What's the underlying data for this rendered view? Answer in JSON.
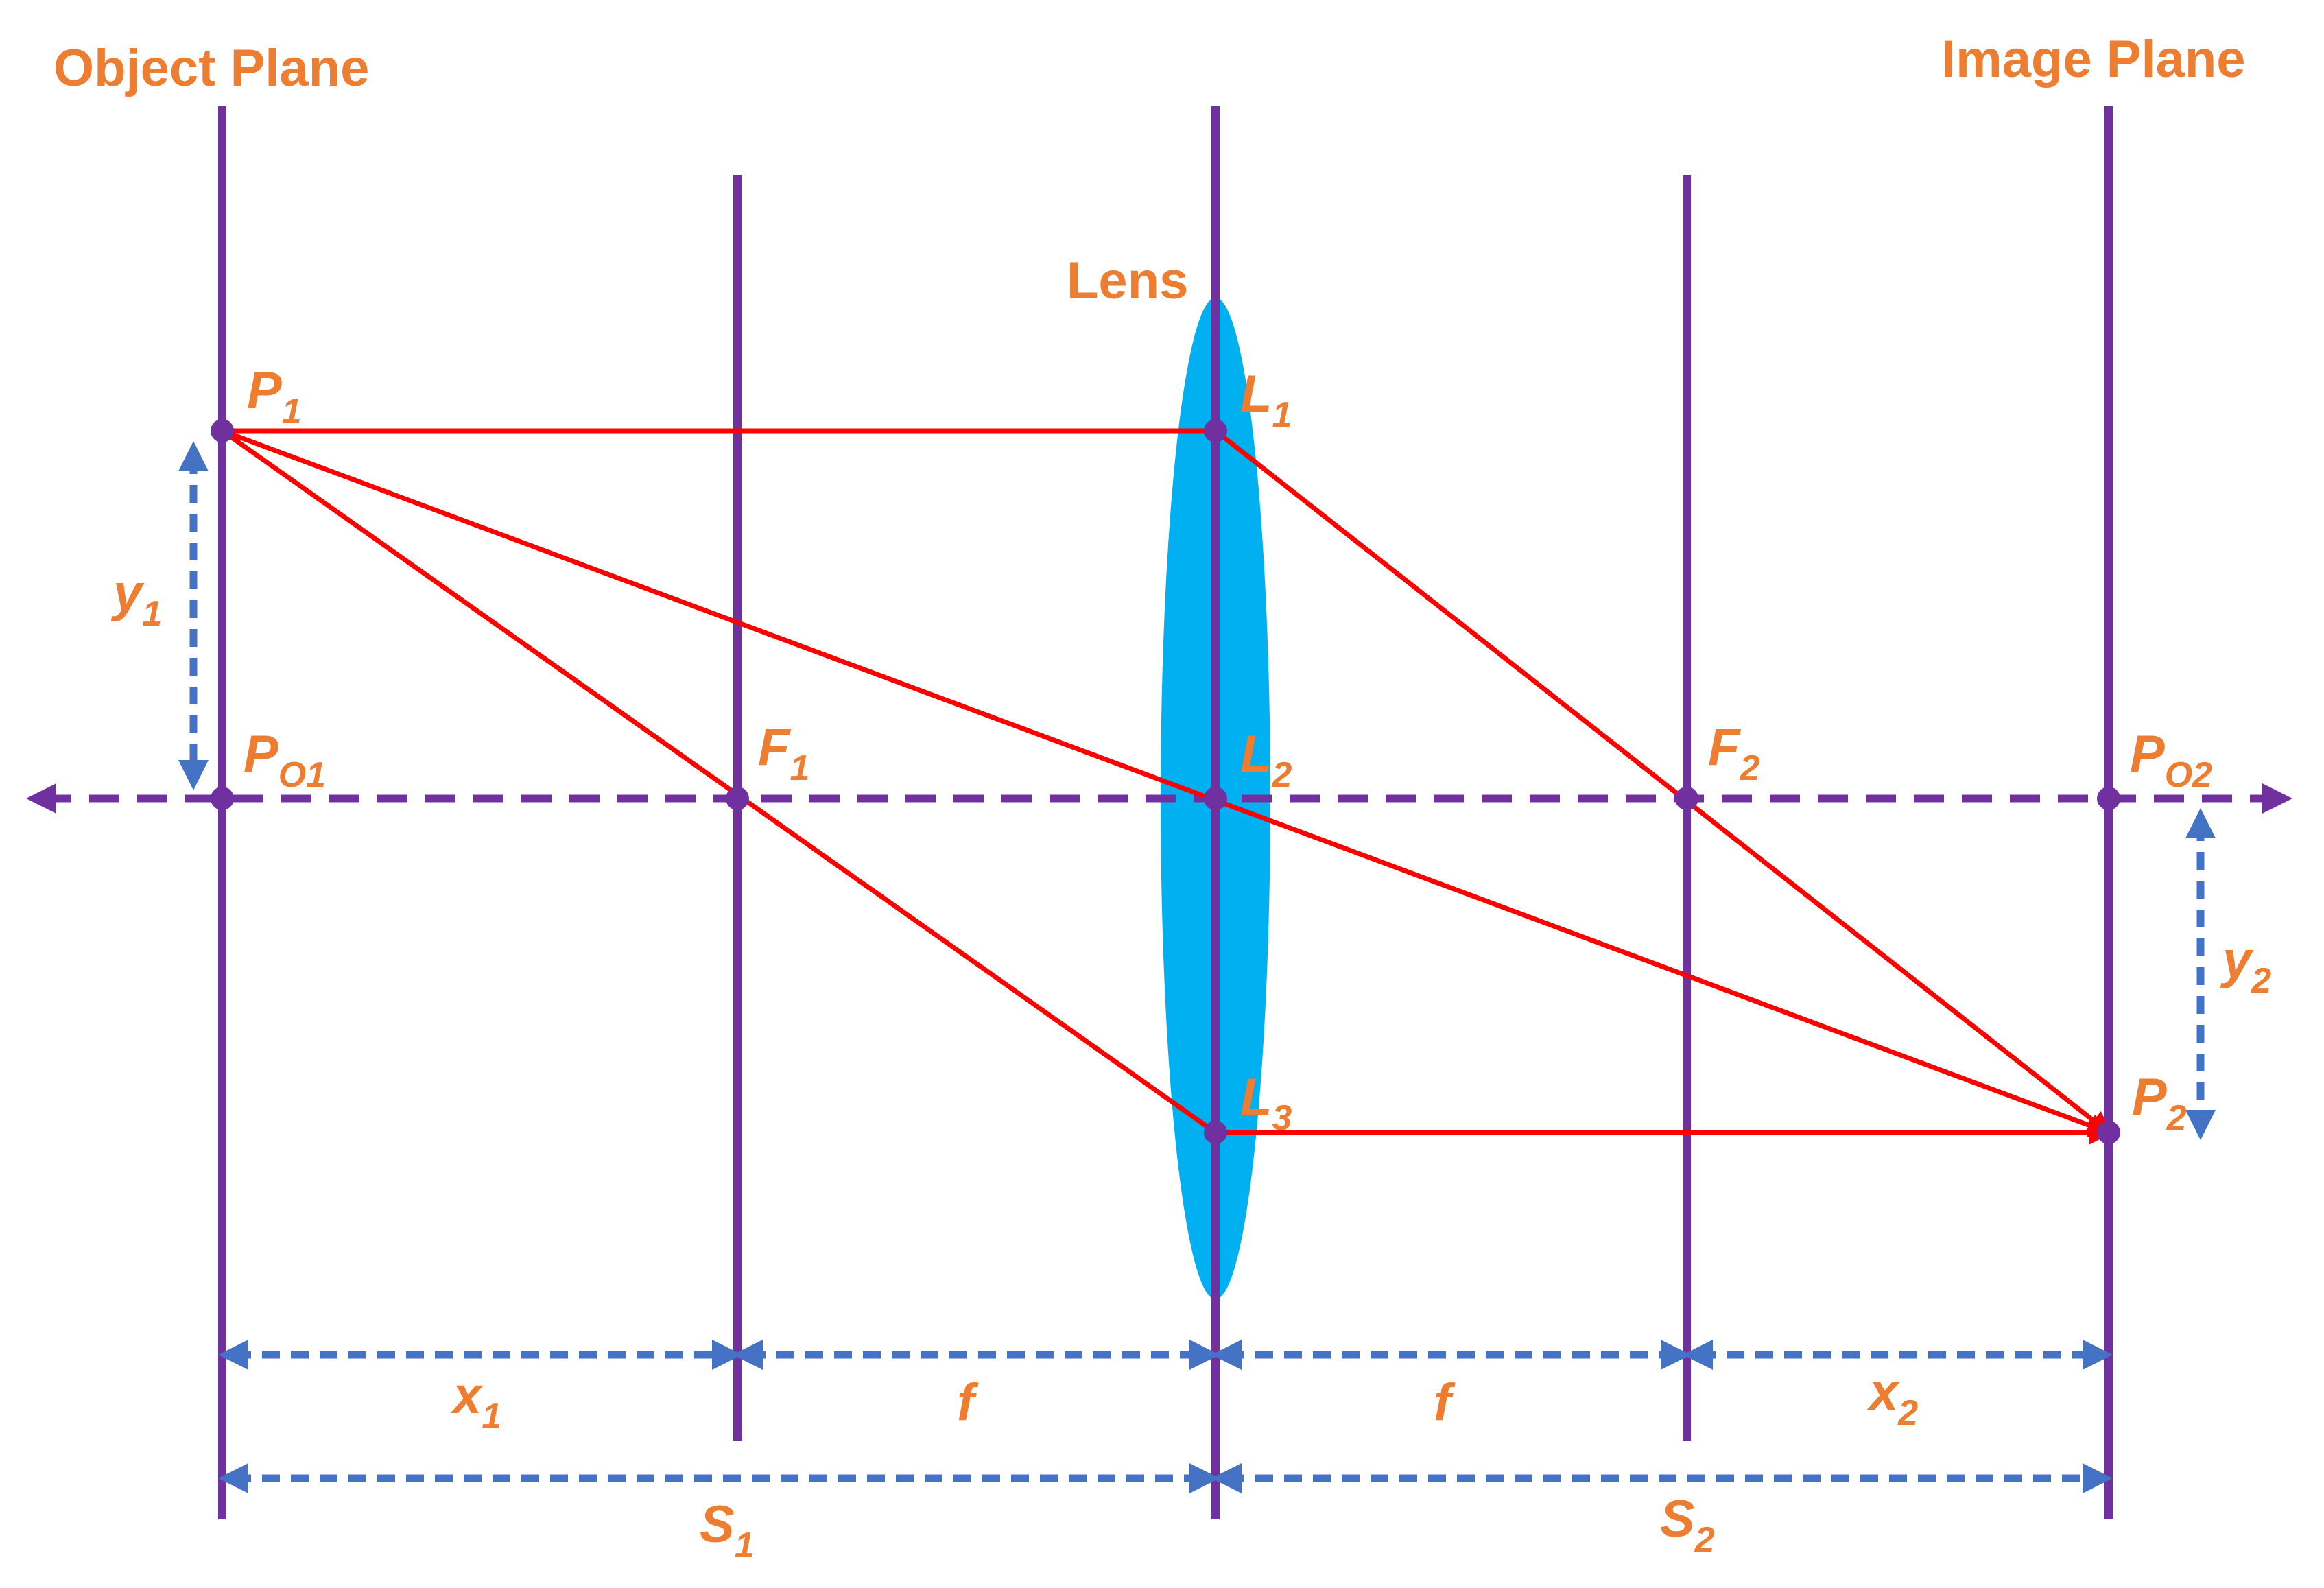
{
  "labels": {
    "object_plane": "Object Plane",
    "image_plane": "Image Plane",
    "lens": "Lens"
  },
  "points": {
    "p1": {
      "base": "P",
      "sub": "1"
    },
    "po1": {
      "base": "P",
      "sub": "O1"
    },
    "f1": {
      "base": "F",
      "sub": "1"
    },
    "l1": {
      "base": "L",
      "sub": "1"
    },
    "l2": {
      "base": "L",
      "sub": "2"
    },
    "l3": {
      "base": "L",
      "sub": "3"
    },
    "f2": {
      "base": "F",
      "sub": "2"
    },
    "po2": {
      "base": "P",
      "sub": "O2"
    },
    "p2": {
      "base": "P",
      "sub": "2"
    }
  },
  "dimensions": {
    "y1": {
      "base": "y",
      "sub": "1"
    },
    "y2": {
      "base": "y",
      "sub": "2"
    },
    "x1": {
      "base": "x",
      "sub": "1"
    },
    "f_left": {
      "base": "f"
    },
    "f_right": {
      "base": "f"
    },
    "x2": {
      "base": "x",
      "sub": "2"
    },
    "s1": {
      "base": "S",
      "sub": "1"
    },
    "s2": {
      "base": "S",
      "sub": "2"
    }
  },
  "colors": {
    "plane": "#7030A0",
    "ray": "#FF0000",
    "lens": "#00B0F0",
    "dimension": "#4472C4",
    "label": "#ED7D31"
  }
}
